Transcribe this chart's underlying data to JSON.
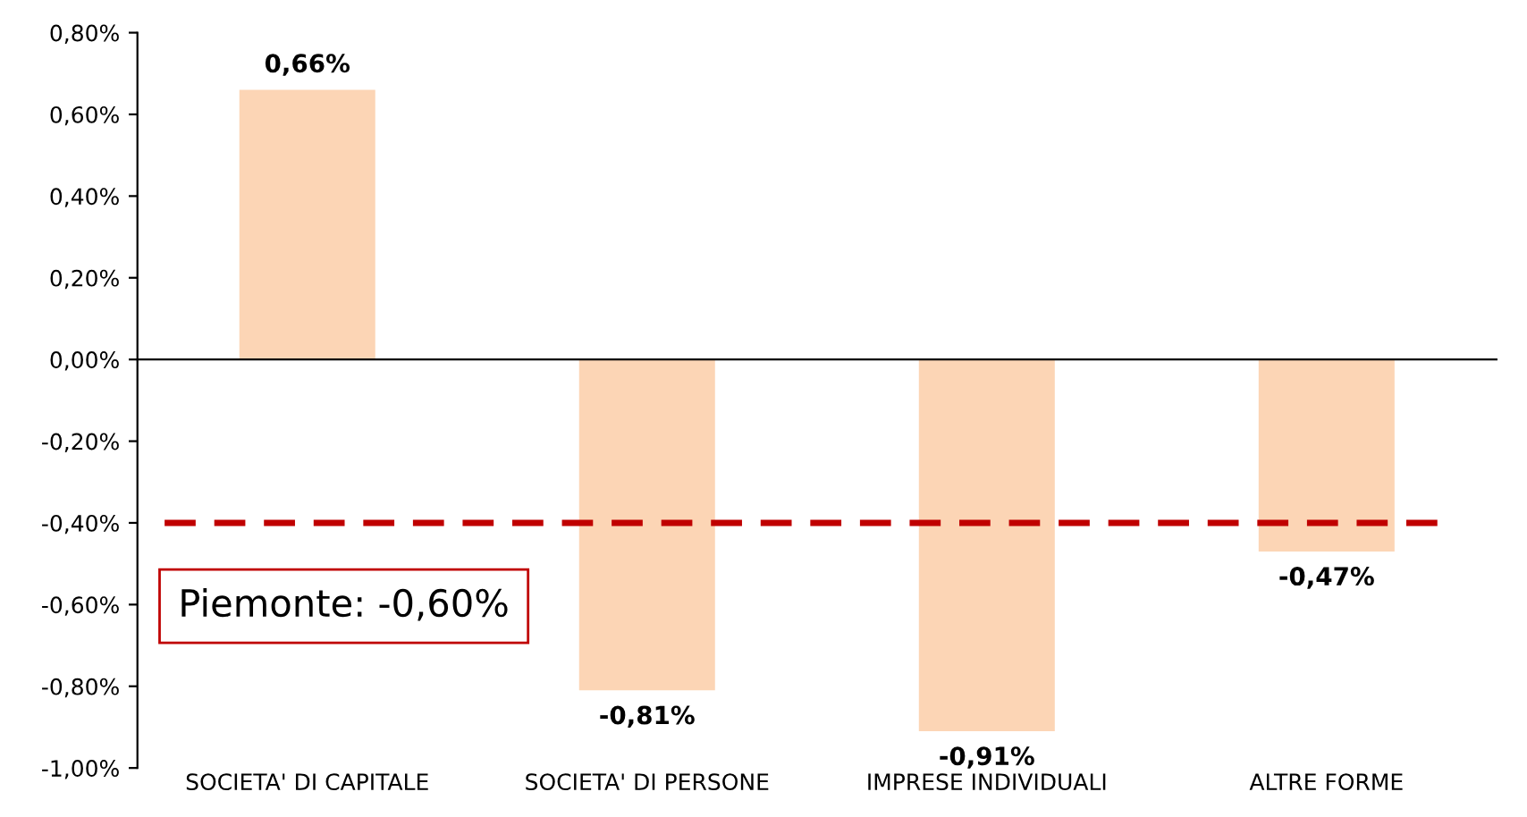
{
  "chart_data": {
    "type": "bar",
    "categories": [
      "SOCIETA' DI CAPITALE",
      "SOCIETA' DI PERSONE",
      "IMPRESE INDIVIDUALI",
      "ALTRE FORME"
    ],
    "values": [
      0.66,
      -0.81,
      -0.91,
      -0.47
    ],
    "value_labels": [
      "0,66%",
      "-0,81%",
      "-0,91%",
      "-0,47%"
    ],
    "color": "#fcd5b5",
    "ylim": [
      -1.0,
      0.8
    ],
    "yticks": [
      {
        "value": -1.0,
        "label": "-1,00%"
      },
      {
        "value": -0.8,
        "label": "-0,80%"
      },
      {
        "value": -0.6,
        "label": "-0,60%"
      },
      {
        "value": -0.4,
        "label": "-0,40%"
      },
      {
        "value": -0.2,
        "label": "-0,20%"
      },
      {
        "value": 0.0,
        "label": "0,00%"
      },
      {
        "value": 0.2,
        "label": "0,20%"
      },
      {
        "value": 0.4,
        "label": "0,40%"
      },
      {
        "value": 0.6,
        "label": "0,60%"
      },
      {
        "value": 0.8,
        "label": "0,80%"
      }
    ],
    "ref_lines": [
      {
        "axis": "y",
        "value": -0.4,
        "color": "#c00000",
        "line_style": "dashed"
      }
    ],
    "annotations": [
      "Piemonte: -0,60%"
    ],
    "grid": false
  }
}
